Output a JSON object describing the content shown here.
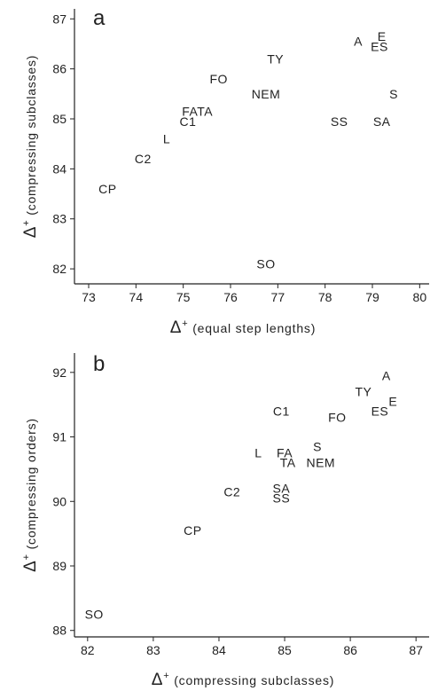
{
  "chart_data": [
    {
      "type": "scatter",
      "title": "a",
      "xlabel": "Δ+ (equal step lengths)",
      "ylabel": "Δ+ (compressing subclasses)",
      "xlim": [
        72.7,
        80.2
      ],
      "ylim": [
        81.7,
        87.2
      ],
      "xticks": [
        "73",
        "74",
        "75",
        "76",
        "77",
        "78",
        "79",
        "80"
      ],
      "yticks": [
        "82",
        "83",
        "84",
        "85",
        "86",
        "87"
      ],
      "grid": false,
      "legend": "none",
      "points": [
        {
          "label": "A",
          "x": 78.7,
          "y": 86.55
        },
        {
          "label": "E",
          "x": 79.2,
          "y": 86.65
        },
        {
          "label": "ES",
          "x": 79.15,
          "y": 86.45
        },
        {
          "label": "TY",
          "x": 76.95,
          "y": 86.2
        },
        {
          "label": "FO",
          "x": 75.75,
          "y": 85.8
        },
        {
          "label": "S",
          "x": 79.45,
          "y": 85.5
        },
        {
          "label": "NEM",
          "x": 76.75,
          "y": 85.5
        },
        {
          "label": "FATA",
          "x": 75.3,
          "y": 85.15
        },
        {
          "label": "C1",
          "x": 75.1,
          "y": 84.95
        },
        {
          "label": "SS",
          "x": 78.3,
          "y": 84.95
        },
        {
          "label": "SA",
          "x": 79.2,
          "y": 84.95
        },
        {
          "label": "L",
          "x": 74.65,
          "y": 84.6
        },
        {
          "label": "C2",
          "x": 74.15,
          "y": 84.2
        },
        {
          "label": "CP",
          "x": 73.4,
          "y": 83.6
        },
        {
          "label": "SO",
          "x": 76.75,
          "y": 82.1
        }
      ]
    },
    {
      "type": "scatter",
      "title": "b",
      "xlabel": "Δ+ (compressing subclasses)",
      "ylabel": "Δ+ (compressing orders)",
      "xlim": [
        81.8,
        87.2
      ],
      "ylim": [
        87.9,
        92.3
      ],
      "xticks": [
        "82",
        "83",
        "84",
        "85",
        "86",
        "87"
      ],
      "yticks": [
        "88",
        "89",
        "90",
        "91",
        "92"
      ],
      "grid": false,
      "legend": "none",
      "points": [
        {
          "label": "A",
          "x": 86.55,
          "y": 91.95
        },
        {
          "label": "TY",
          "x": 86.2,
          "y": 91.7
        },
        {
          "label": "E",
          "x": 86.65,
          "y": 91.55
        },
        {
          "label": "ES",
          "x": 86.45,
          "y": 91.4
        },
        {
          "label": "C1",
          "x": 84.95,
          "y": 91.4
        },
        {
          "label": "FO",
          "x": 85.8,
          "y": 91.3
        },
        {
          "label": "S",
          "x": 85.5,
          "y": 90.85
        },
        {
          "label": "L",
          "x": 84.6,
          "y": 90.75
        },
        {
          "label": "FA",
          "x": 85.0,
          "y": 90.75
        },
        {
          "label": "TA",
          "x": 85.05,
          "y": 90.6
        },
        {
          "label": "NEM",
          "x": 85.55,
          "y": 90.6
        },
        {
          "label": "SA",
          "x": 84.95,
          "y": 90.2
        },
        {
          "label": "SS",
          "x": 84.95,
          "y": 90.05
        },
        {
          "label": "C2",
          "x": 84.2,
          "y": 90.15
        },
        {
          "label": "CP",
          "x": 83.6,
          "y": 89.55
        },
        {
          "label": "SO",
          "x": 82.1,
          "y": 88.25
        }
      ]
    }
  ]
}
